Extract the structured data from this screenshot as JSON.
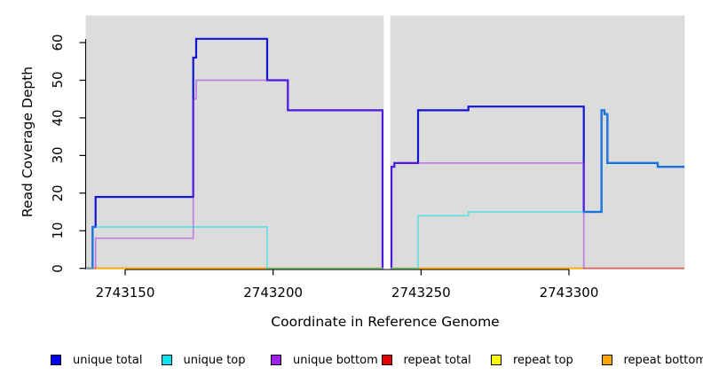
{
  "chart_data": {
    "type": "line",
    "subtype": "step-coverage-plot",
    "title": "",
    "xlabel": "Coordinate in Reference Genome",
    "ylabel": "Read Coverage Depth",
    "x_range": [
      2743136.65,
      2743339.15
    ],
    "y_range": [
      0,
      67.2
    ],
    "x_ticks": [
      2743150,
      2743200,
      2743250,
      2743300
    ],
    "x_tick_labels": [
      "2743150",
      "2743200",
      "2743250",
      "2743300"
    ],
    "y_ticks": [
      0,
      10,
      20,
      30,
      40,
      50,
      60
    ],
    "y_tick_labels": [
      "0",
      "10",
      "20",
      "30",
      "40",
      "50",
      "60"
    ],
    "plot_bg_color": "#DCDCDC",
    "grid": false,
    "legend_position": "bottom",
    "gap": {
      "x_start": 2743237.4,
      "x_end": 2743239.6
    },
    "series": [
      {
        "name": "unique total",
        "color": "#1414D2",
        "width": 2.2,
        "opacity": 1,
        "points": [
          [
            2743137,
            0
          ],
          [
            2743139,
            11
          ],
          [
            2743140,
            19
          ],
          [
            2743173,
            56
          ],
          [
            2743174,
            61
          ],
          [
            2743198,
            50
          ],
          [
            2743205,
            42
          ],
          [
            2743237,
            0
          ],
          [
            2743240,
            27
          ],
          [
            2743241,
            28
          ],
          [
            2743249,
            42
          ],
          [
            2743266,
            43
          ],
          [
            2743305,
            15
          ],
          [
            2743311,
            42
          ],
          [
            2743312,
            41
          ],
          [
            2743313,
            28
          ],
          [
            2743330,
            27
          ]
        ],
        "x_end": 2743339
      },
      {
        "name": "repeat total",
        "color": "#E00000",
        "width": 1.6,
        "opacity": 0.85,
        "points": [
          [
            2743137,
            0
          ]
        ],
        "x_end": 2743339
      },
      {
        "name": "repeat top",
        "color": "#FFFF00",
        "width": 1.6,
        "opacity": 0.85,
        "points": [
          [
            2743137,
            0
          ]
        ],
        "x_end": 2743339
      },
      {
        "name": "repeat bottom",
        "color": "#FFA500",
        "width": 1.8,
        "opacity": 0.95,
        "points": [
          [
            2743137,
            0
          ]
        ],
        "x_end": 2743339
      },
      {
        "name": "unique bottom",
        "color": "#A020F0",
        "width": 1.7,
        "opacity": 0.5,
        "points": [
          [
            2743137,
            0
          ],
          [
            2743140,
            8
          ],
          [
            2743173,
            45
          ],
          [
            2743174,
            50
          ],
          [
            2743205,
            42
          ],
          [
            2743237,
            0
          ],
          [
            2743240,
            27
          ],
          [
            2743241,
            28
          ],
          [
            2743305,
            0
          ]
        ],
        "x_end": 2743339
      },
      {
        "name": "unique top",
        "color": "#00E0EE",
        "width": 1.7,
        "opacity": 0.55,
        "points": [
          [
            2743137,
            0
          ],
          [
            2743139,
            11
          ],
          [
            2743198,
            0
          ],
          [
            2743249,
            14
          ],
          [
            2743266,
            15
          ],
          [
            2743311,
            42
          ],
          [
            2743312,
            41
          ],
          [
            2743313,
            28
          ],
          [
            2743330,
            27
          ]
        ],
        "x_end": 2743339
      }
    ]
  },
  "legend": {
    "items": [
      {
        "label": "unique total",
        "color": "#0000EE"
      },
      {
        "label": "unique top",
        "color": "#00E5EE"
      },
      {
        "label": "unique bottom",
        "color": "#A020F0"
      },
      {
        "label": "repeat total",
        "color": "#E60000"
      },
      {
        "label": "repeat top",
        "color": "#FFFF00"
      },
      {
        "label": "repeat bottom",
        "color": "#FFA500"
      }
    ]
  }
}
